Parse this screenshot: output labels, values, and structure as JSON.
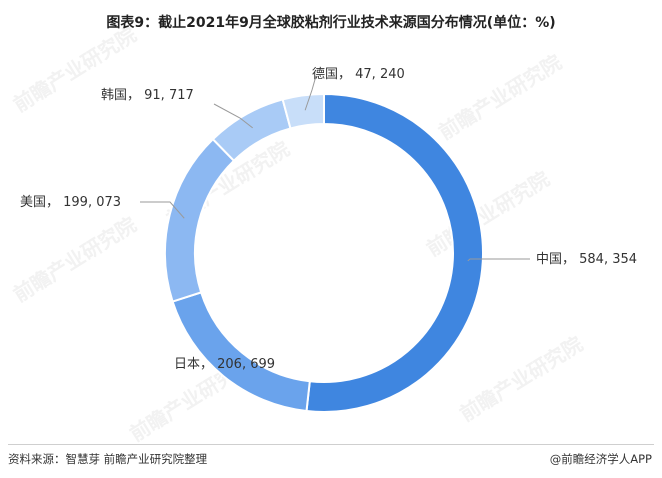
{
  "title": "图表9：截止2021年9月全球胶粘剂行业技术来源国分布情况(单位：%)",
  "source": "资料来源：智慧芽 前瞻产业研究院整理",
  "credit": "@前瞻经济学人APP",
  "watermark": {
    "text": "前瞻产业研究院",
    "subtext": "前瞻产业研究院 ESSENCE"
  },
  "chart_data": {
    "type": "pie",
    "title": "图表9：截止2021年9月全球胶粘剂行业技术来源国分布情况(单位：%)",
    "style": "donut",
    "start_angle_deg": 0,
    "direction": "clockwise",
    "slices": [
      {
        "label": "中国",
        "value": 584354,
        "value_text": "584, 354",
        "display": "中国， 584, 354",
        "color": "#3f86e0"
      },
      {
        "label": "日本",
        "value": 206699,
        "value_text": "206, 699",
        "display": "日本， 206, 699",
        "color": "#6aa3ec"
      },
      {
        "label": "美国",
        "value": 199073,
        "value_text": "199, 073",
        "display": "美国， 199, 073",
        "color": "#8cb8f2"
      },
      {
        "label": "韩国",
        "value": 91717,
        "value_text": "91, 717",
        "display": "韩国， 91, 717",
        "color": "#a9cbf6"
      },
      {
        "label": "德国",
        "value": 47240,
        "value_text": "47, 240",
        "display": "德国， 47, 240",
        "color": "#c8def9"
      }
    ],
    "legend": "none"
  }
}
